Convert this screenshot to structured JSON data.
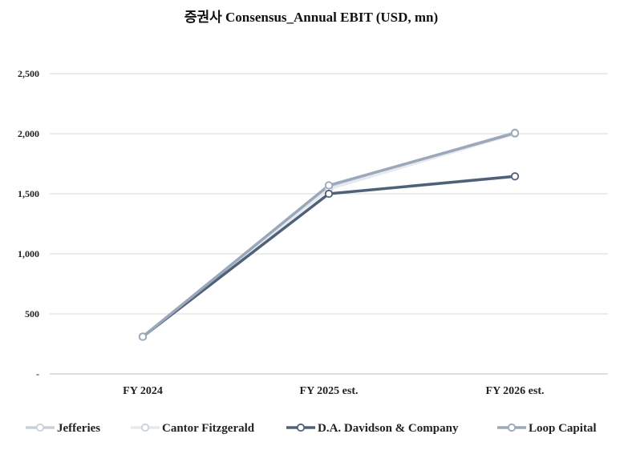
{
  "chart_data": {
    "type": "line",
    "title": "증권사 Consensus_Annual EBIT (USD, mn)",
    "categories": [
      "FY 2024",
      "FY 2025 est.",
      "FY 2026 est."
    ],
    "y_ticks": [
      "-",
      "500",
      "1,000",
      "1,500",
      "2,000",
      "2,500"
    ],
    "ylim": [
      0,
      2500
    ],
    "grid": true,
    "legend_position": "bottom",
    "series": [
      {
        "name": "Jefferies",
        "values": [
          310,
          1560,
          2010
        ],
        "color": "#c8d0db"
      },
      {
        "name": "Cantor Fitzgerald",
        "values": [
          310,
          1540,
          2000
        ],
        "color": "#e6eaef"
      },
      {
        "name": "D.A. Davidson & Company",
        "values": [
          310,
          1500,
          1645
        ],
        "color": "#4f6179"
      },
      {
        "name": "Loop Capital",
        "values": [
          310,
          1570,
          2005
        ],
        "color": "#9aa8ba"
      }
    ]
  }
}
